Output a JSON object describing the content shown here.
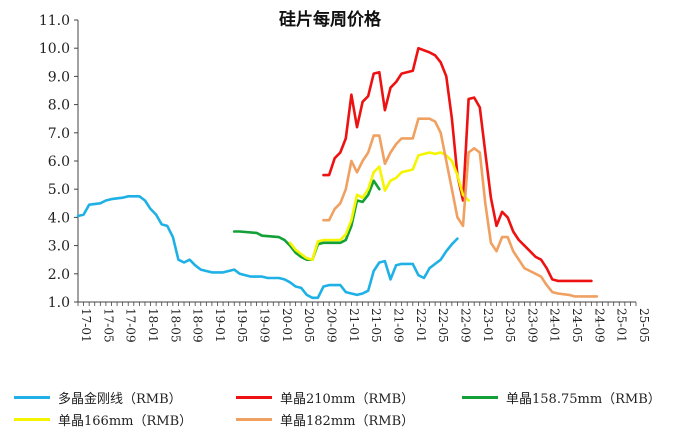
{
  "chart_data": {
    "type": "line",
    "title": "硅片每周价格",
    "xlabel": "",
    "ylabel": "",
    "ylim": [
      1.0,
      11.0
    ],
    "yticks": [
      "1.0",
      "2.0",
      "3.0",
      "4.0",
      "5.0",
      "6.0",
      "7.0",
      "8.0",
      "9.0",
      "10.0",
      "11.0"
    ],
    "x_range": [
      "2017-01",
      "2025-05"
    ],
    "xticks": [
      "17-01",
      "17-05",
      "17-09",
      "18-01",
      "18-05",
      "18-09",
      "19-01",
      "19-05",
      "19-09",
      "20-01",
      "20-05",
      "20-09",
      "21-01",
      "21-05",
      "21-09",
      "22-01",
      "22-05",
      "22-09",
      "23-01",
      "23-05",
      "23-09",
      "24-01",
      "24-05",
      "24-09",
      "25-01",
      "25-05"
    ],
    "grid": false,
    "legend_position": "bottom",
    "series": [
      {
        "name": "多晶金刚线（RMB）",
        "color": "#1fb1e6",
        "points": [
          [
            "2017-01",
            4.05
          ],
          [
            "2017-02",
            4.1
          ],
          [
            "2017-03",
            4.45
          ],
          [
            "2017-05",
            4.5
          ],
          [
            "2017-06",
            4.6
          ],
          [
            "2017-07",
            4.65
          ],
          [
            "2017-09",
            4.7
          ],
          [
            "2017-10",
            4.75
          ],
          [
            "2017-12",
            4.75
          ],
          [
            "2018-01",
            4.6
          ],
          [
            "2018-02",
            4.3
          ],
          [
            "2018-03",
            4.1
          ],
          [
            "2018-04",
            3.75
          ],
          [
            "2018-05",
            3.7
          ],
          [
            "2018-06",
            3.3
          ],
          [
            "2018-07",
            2.5
          ],
          [
            "2018-08",
            2.4
          ],
          [
            "2018-09",
            2.5
          ],
          [
            "2018-10",
            2.3
          ],
          [
            "2018-11",
            2.15
          ],
          [
            "2018-12",
            2.1
          ],
          [
            "2019-01",
            2.05
          ],
          [
            "2019-03",
            2.05
          ],
          [
            "2019-04",
            2.1
          ],
          [
            "2019-05",
            2.15
          ],
          [
            "2019-06",
            2.0
          ],
          [
            "2019-07",
            1.95
          ],
          [
            "2019-08",
            1.9
          ],
          [
            "2019-10",
            1.9
          ],
          [
            "2019-11",
            1.85
          ],
          [
            "2020-01",
            1.85
          ],
          [
            "2020-02",
            1.8
          ],
          [
            "2020-03",
            1.7
          ],
          [
            "2020-04",
            1.55
          ],
          [
            "2020-05",
            1.5
          ],
          [
            "2020-06",
            1.25
          ],
          [
            "2020-07",
            1.15
          ],
          [
            "2020-08",
            1.15
          ],
          [
            "2020-09",
            1.55
          ],
          [
            "2020-10",
            1.6
          ],
          [
            "2020-12",
            1.6
          ],
          [
            "2021-01",
            1.35
          ],
          [
            "2021-02",
            1.3
          ],
          [
            "2021-03",
            1.25
          ],
          [
            "2021-04",
            1.3
          ],
          [
            "2021-05",
            1.4
          ],
          [
            "2021-06",
            2.1
          ],
          [
            "2021-07",
            2.4
          ],
          [
            "2021-08",
            2.45
          ],
          [
            "2021-09",
            1.8
          ],
          [
            "2021-10",
            2.3
          ],
          [
            "2021-11",
            2.35
          ],
          [
            "2022-01",
            2.35
          ],
          [
            "2022-02",
            1.95
          ],
          [
            "2022-03",
            1.85
          ],
          [
            "2022-04",
            2.2
          ],
          [
            "2022-05",
            2.35
          ],
          [
            "2022-06",
            2.5
          ],
          [
            "2022-07",
            2.8
          ],
          [
            "2022-08",
            3.05
          ],
          [
            "2022-09",
            3.25
          ]
        ]
      },
      {
        "name": "单晶210mm（RMB）",
        "color": "#ee1111",
        "points": [
          [
            "2020-09",
            5.5
          ],
          [
            "2020-10",
            5.5
          ],
          [
            "2020-11",
            6.1
          ],
          [
            "2020-12",
            6.3
          ],
          [
            "2021-01",
            6.8
          ],
          [
            "2021-02",
            8.35
          ],
          [
            "2021-03",
            7.2
          ],
          [
            "2021-04",
            8.1
          ],
          [
            "2021-05",
            8.3
          ],
          [
            "2021-06",
            9.1
          ],
          [
            "2021-07",
            9.15
          ],
          [
            "2021-08",
            7.8
          ],
          [
            "2021-09",
            8.6
          ],
          [
            "2021-10",
            8.8
          ],
          [
            "2021-11",
            9.1
          ],
          [
            "2022-01",
            9.2
          ],
          [
            "2022-02",
            10.0
          ],
          [
            "2022-04",
            9.85
          ],
          [
            "2022-05",
            9.75
          ],
          [
            "2022-06",
            9.5
          ],
          [
            "2022-07",
            9.0
          ],
          [
            "2022-08",
            7.5
          ],
          [
            "2022-09",
            5.5
          ],
          [
            "2022-10",
            4.6
          ],
          [
            "2022-11",
            8.2
          ],
          [
            "2022-12",
            8.25
          ],
          [
            "2023-01",
            7.9
          ],
          [
            "2023-02",
            6.3
          ],
          [
            "2023-03",
            4.7
          ],
          [
            "2023-04",
            3.7
          ],
          [
            "2023-05",
            4.2
          ],
          [
            "2023-06",
            4.0
          ],
          [
            "2023-07",
            3.5
          ],
          [
            "2023-08",
            3.2
          ],
          [
            "2023-09",
            3.0
          ],
          [
            "2023-10",
            2.8
          ],
          [
            "2023-11",
            2.6
          ],
          [
            "2023-12",
            2.5
          ],
          [
            "2024-01",
            2.2
          ],
          [
            "2024-02",
            1.8
          ],
          [
            "2024-03",
            1.75
          ],
          [
            "2024-09",
            1.75
          ]
        ]
      },
      {
        "name": "单晶158.75mm（RMB）",
        "color": "#12a037",
        "points": [
          [
            "2019-05",
            3.5
          ],
          [
            "2019-06",
            3.5
          ],
          [
            "2019-09",
            3.45
          ],
          [
            "2019-10",
            3.35
          ],
          [
            "2020-01",
            3.3
          ],
          [
            "2020-02",
            3.2
          ],
          [
            "2020-03",
            3.0
          ],
          [
            "2020-04",
            2.75
          ],
          [
            "2020-05",
            2.6
          ],
          [
            "2020-06",
            2.5
          ],
          [
            "2020-07",
            2.5
          ],
          [
            "2020-08",
            3.05
          ],
          [
            "2020-09",
            3.1
          ],
          [
            "2020-12",
            3.1
          ],
          [
            "2021-01",
            3.2
          ],
          [
            "2021-02",
            3.7
          ],
          [
            "2021-03",
            4.6
          ],
          [
            "2021-04",
            4.55
          ],
          [
            "2021-05",
            4.8
          ],
          [
            "2021-06",
            5.3
          ],
          [
            "2021-07",
            5.0
          ]
        ]
      },
      {
        "name": "单晶166mm（RMB）",
        "color": "#f5f500",
        "points": [
          [
            "2020-03",
            3.1
          ],
          [
            "2020-04",
            2.85
          ],
          [
            "2020-05",
            2.7
          ],
          [
            "2020-06",
            2.55
          ],
          [
            "2020-07",
            2.5
          ],
          [
            "2020-08",
            3.15
          ],
          [
            "2020-09",
            3.2
          ],
          [
            "2020-12",
            3.2
          ],
          [
            "2021-01",
            3.4
          ],
          [
            "2021-02",
            3.9
          ],
          [
            "2021-03",
            4.8
          ],
          [
            "2021-04",
            4.7
          ],
          [
            "2021-05",
            5.0
          ],
          [
            "2021-06",
            5.6
          ],
          [
            "2021-07",
            5.8
          ],
          [
            "2021-08",
            4.95
          ],
          [
            "2021-09",
            5.3
          ],
          [
            "2021-10",
            5.4
          ],
          [
            "2021-11",
            5.6
          ],
          [
            "2022-01",
            5.7
          ],
          [
            "2022-02",
            6.2
          ],
          [
            "2022-04",
            6.3
          ],
          [
            "2022-05",
            6.25
          ],
          [
            "2022-06",
            6.3
          ],
          [
            "2022-07",
            6.2
          ],
          [
            "2022-08",
            6.0
          ],
          [
            "2022-09",
            5.5
          ],
          [
            "2022-10",
            4.8
          ],
          [
            "2022-11",
            4.6
          ]
        ]
      },
      {
        "name": "单晶182mm（RMB）",
        "color": "#f0a060",
        "points": [
          [
            "2020-09",
            3.9
          ],
          [
            "2020-10",
            3.9
          ],
          [
            "2020-11",
            4.3
          ],
          [
            "2020-12",
            4.5
          ],
          [
            "2021-01",
            5.0
          ],
          [
            "2021-02",
            6.0
          ],
          [
            "2021-03",
            5.6
          ],
          [
            "2021-04",
            6.0
          ],
          [
            "2021-05",
            6.3
          ],
          [
            "2021-06",
            6.9
          ],
          [
            "2021-07",
            6.9
          ],
          [
            "2021-08",
            5.9
          ],
          [
            "2021-09",
            6.3
          ],
          [
            "2021-10",
            6.6
          ],
          [
            "2021-11",
            6.8
          ],
          [
            "2022-01",
            6.8
          ],
          [
            "2022-02",
            7.5
          ],
          [
            "2022-04",
            7.5
          ],
          [
            "2022-05",
            7.4
          ],
          [
            "2022-06",
            7.0
          ],
          [
            "2022-07",
            6.0
          ],
          [
            "2022-08",
            5.0
          ],
          [
            "2022-09",
            4.0
          ],
          [
            "2022-10",
            3.7
          ],
          [
            "2022-11",
            6.3
          ],
          [
            "2022-12",
            6.45
          ],
          [
            "2023-01",
            6.3
          ],
          [
            "2023-02",
            4.5
          ],
          [
            "2023-03",
            3.1
          ],
          [
            "2023-04",
            2.8
          ],
          [
            "2023-05",
            3.3
          ],
          [
            "2023-06",
            3.3
          ],
          [
            "2023-07",
            2.8
          ],
          [
            "2023-08",
            2.5
          ],
          [
            "2023-09",
            2.2
          ],
          [
            "2023-10",
            2.1
          ],
          [
            "2023-11",
            2.0
          ],
          [
            "2023-12",
            1.9
          ],
          [
            "2024-01",
            1.6
          ],
          [
            "2024-02",
            1.35
          ],
          [
            "2024-03",
            1.3
          ],
          [
            "2024-05",
            1.25
          ],
          [
            "2024-06",
            1.2
          ],
          [
            "2024-10",
            1.2
          ]
        ]
      }
    ]
  }
}
